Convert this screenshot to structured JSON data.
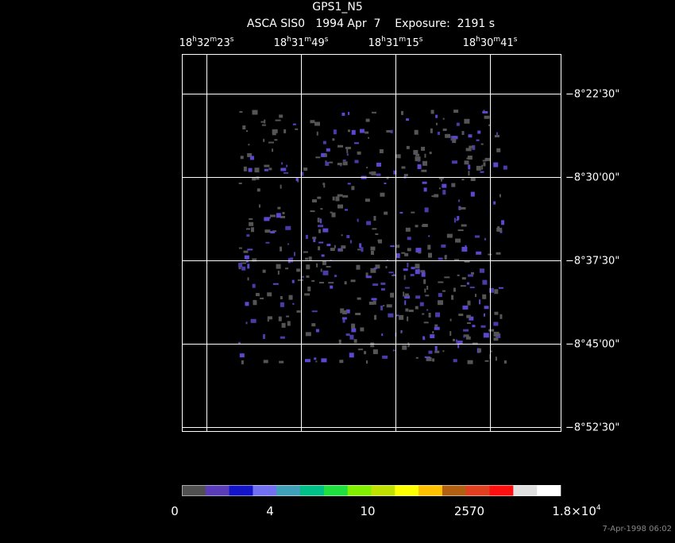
{
  "header": {
    "title": "GPS1_N5",
    "subtitle": "ASCA SIS0   1994 Apr  7    Exposure:  2191 s"
  },
  "ra_labels": [
    [
      "18",
      "h",
      "32",
      "m",
      "23",
      "s"
    ],
    [
      "18",
      "h",
      "31",
      "m",
      "49",
      "s"
    ],
    [
      "18",
      "h",
      "31",
      "m",
      "15",
      "s"
    ],
    [
      "18",
      "h",
      "30",
      "m",
      "41",
      "s"
    ]
  ],
  "dec_labels": [
    "−8°22'30\"",
    "−8°30'00\"",
    "−8°37'30\"",
    "−8°45'00\"",
    "−8°52'30\""
  ],
  "colorbar": {
    "colors": [
      "#505050",
      "#5a3cb8",
      "#1414c8",
      "#7070f0",
      "#40a0b8",
      "#00c088",
      "#20e040",
      "#80f000",
      "#c0e000",
      "#ffff00",
      "#ffc000",
      "#b06010",
      "#e04020",
      "#ff1010",
      "#e0e0e0",
      "#ffffff"
    ],
    "labels": [
      [
        "0"
      ],
      [
        "4"
      ],
      [
        "10"
      ],
      [
        "2570"
      ],
      [
        "1.8×10",
        "4"
      ]
    ]
  },
  "timestamp": "7-Apr-1998 06:02"
}
